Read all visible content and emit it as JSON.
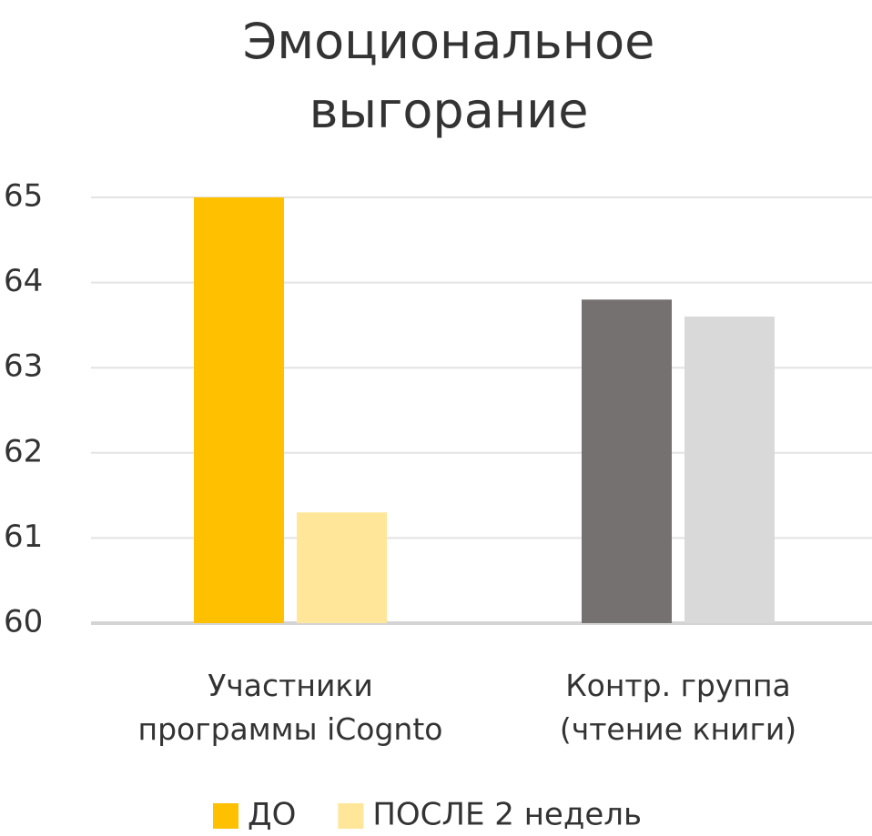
{
  "chart_data": {
    "type": "bar",
    "title": "Эмоциональное\nвыгорание",
    "categories": [
      "Участники\nпрограммы iCognto",
      "Контр. группа\n(чтение книги)"
    ],
    "series": [
      {
        "name": "ДО",
        "colors": [
          "#FFC000",
          "#767171"
        ],
        "values": [
          65,
          63.8
        ]
      },
      {
        "name": "ПОСЛЕ 2 недель",
        "colors": [
          "#FFE699",
          "#D9D9D9"
        ],
        "values": [
          61.3,
          63.6
        ]
      }
    ],
    "ylim": [
      60,
      65
    ],
    "yticks": [
      60,
      61,
      62,
      63,
      64,
      65
    ],
    "grid": true,
    "legend": "bottom"
  }
}
